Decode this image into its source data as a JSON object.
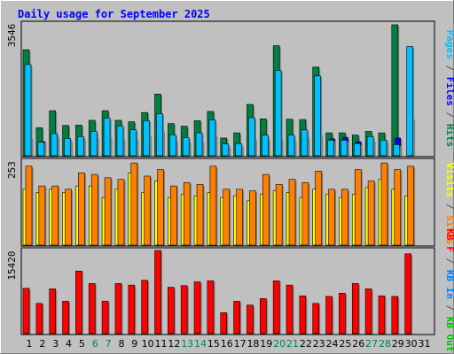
{
  "chart_data": [
    {
      "type": "bar",
      "title": "Daily usage for September 2025",
      "categories": [
        "1",
        "2",
        "3",
        "4",
        "5",
        "6",
        "7",
        "8",
        "9",
        "10",
        "11",
        "12",
        "13",
        "14",
        "15",
        "16",
        "17",
        "18",
        "19",
        "20",
        "21",
        "22",
        "23",
        "24",
        "25",
        "26",
        "27",
        "28",
        "29",
        "30",
        "31"
      ],
      "ymax_label": "3546",
      "ylim": [
        0,
        3546
      ],
      "legend": [
        {
          "text": "Pages",
          "color": "#00c0ff"
        },
        {
          "text": " / ",
          "color": "#555555"
        },
        {
          "text": "Files",
          "color": "#0000ff"
        },
        {
          "text": " / ",
          "color": "#555555"
        },
        {
          "text": "Hits",
          "color": "#008040"
        }
      ],
      "series": [
        {
          "name": "Hits",
          "color": "#008040",
          "values": [
            2870,
            760,
            1220,
            820,
            830,
            960,
            1220,
            960,
            920,
            1170,
            1670,
            870,
            800,
            950,
            1200,
            480,
            620,
            1390,
            1000,
            2980,
            990,
            980,
            2400,
            620,
            620,
            560,
            660,
            620,
            3546,
            0,
            0
          ]
        },
        {
          "name": "Files",
          "color": "#0000ff",
          "values": [
            500,
            380,
            520,
            410,
            460,
            500,
            510,
            460,
            470,
            560,
            700,
            410,
            390,
            390,
            560,
            250,
            260,
            450,
            460,
            460,
            410,
            500,
            600,
            460,
            500,
            380,
            420,
            390,
            480,
            1020,
            0
          ]
        },
        {
          "name": "Pages",
          "color": "#00c0ff",
          "values": [
            2470,
            370,
            600,
            470,
            520,
            660,
            1020,
            810,
            700,
            950,
            1140,
            570,
            490,
            620,
            970,
            320,
            330,
            1030,
            560,
            2310,
            560,
            700,
            2160,
            420,
            420,
            330,
            520,
            420,
            300,
            2960,
            0
          ]
        }
      ]
    },
    {
      "type": "bar",
      "categories": [
        "1",
        "2",
        "3",
        "4",
        "5",
        "6",
        "7",
        "8",
        "9",
        "10",
        "11",
        "12",
        "13",
        "14",
        "15",
        "16",
        "17",
        "18",
        "19",
        "20",
        "21",
        "22",
        "23",
        "24",
        "25",
        "26",
        "27",
        "28",
        "29",
        "30",
        "31"
      ],
      "ymax_label": "253",
      "ylim": [
        0,
        253
      ],
      "legend": [
        {
          "text": "Visits",
          "color": "#ffff00"
        },
        {
          "text": " / ",
          "color": "#555555"
        },
        {
          "text": "Sites",
          "color": "#ff8000"
        }
      ],
      "series": [
        {
          "name": "Visits",
          "color": "#ffff00",
          "values": [
            170,
            160,
            170,
            160,
            180,
            180,
            145,
            170,
            220,
            160,
            195,
            145,
            155,
            150,
            160,
            145,
            150,
            135,
            155,
            165,
            160,
            145,
            170,
            155,
            145,
            155,
            175,
            200,
            170,
            150,
            0
          ]
        },
        {
          "name": "Sites",
          "color": "#ff8000",
          "values": [
            240,
            180,
            180,
            170,
            220,
            215,
            205,
            200,
            250,
            210,
            230,
            180,
            190,
            185,
            240,
            170,
            170,
            165,
            215,
            185,
            200,
            190,
            225,
            170,
            170,
            230,
            195,
            250,
            230,
            240,
            0
          ]
        }
      ]
    },
    {
      "type": "bar",
      "categories": [
        "1",
        "2",
        "3",
        "4",
        "5",
        "6",
        "7",
        "8",
        "9",
        "10",
        "11",
        "12",
        "13",
        "14",
        "15",
        "16",
        "17",
        "18",
        "19",
        "20",
        "21",
        "22",
        "23",
        "24",
        "25",
        "26",
        "27",
        "28",
        "29",
        "30",
        "31"
      ],
      "ymax_label": "15420",
      "ylim": [
        0,
        15420
      ],
      "legend": [
        {
          "text": "KB F",
          "color": "#ff0000"
        },
        {
          "text": " / ",
          "color": "#555555"
        },
        {
          "text": "KB In",
          "color": "#0080ff"
        },
        {
          "text": " / ",
          "color": "#555555"
        },
        {
          "text": "KB Out",
          "color": "#00c000"
        }
      ],
      "series": [
        {
          "name": "KB F",
          "color": "#ff0000",
          "values": [
            8400,
            5600,
            8300,
            6000,
            11600,
            9300,
            6000,
            9300,
            9000,
            9900,
            15420,
            8600,
            8900,
            9600,
            9800,
            3900,
            6000,
            5300,
            6500,
            9800,
            9000,
            7000,
            5600,
            6900,
            7500,
            9300,
            8300,
            7000,
            6900,
            14800,
            0
          ]
        }
      ]
    }
  ],
  "days_weekend": [
    6,
    7,
    13,
    14,
    20,
    21,
    27,
    28
  ]
}
